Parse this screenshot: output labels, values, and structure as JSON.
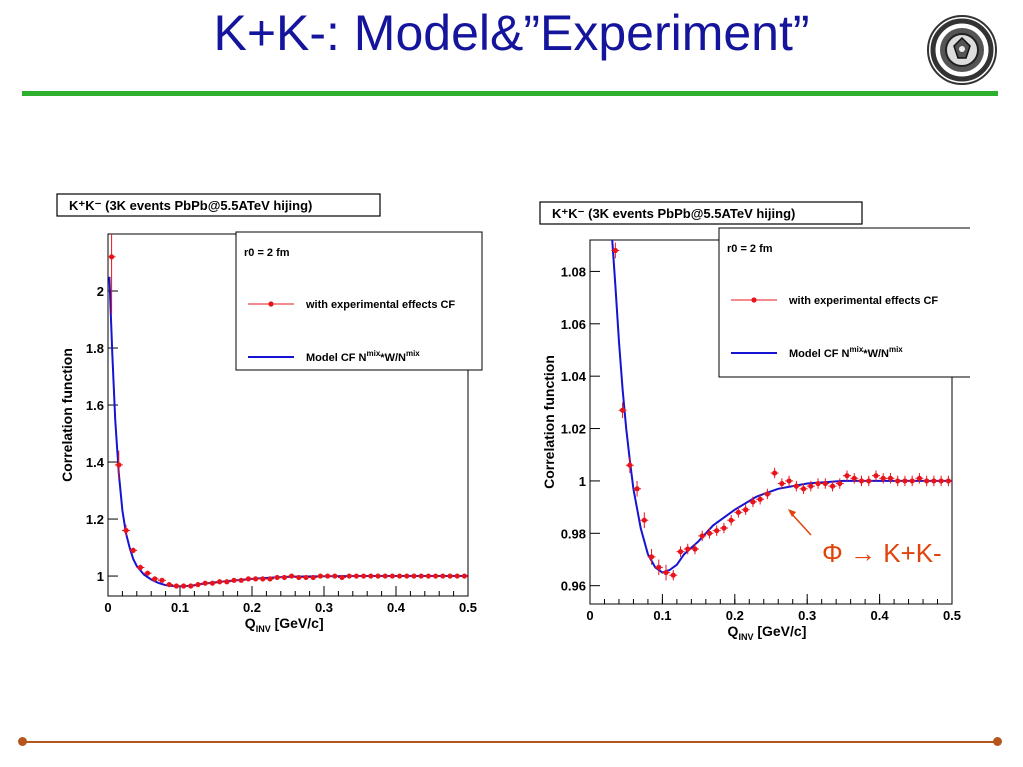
{
  "slide": {
    "title": "K+K-: Model&”Experiment”",
    "title_color": "#14149c",
    "rule_color": "#2db02d",
    "footer_color": "#b5561c",
    "logo_icon": "university-seal-icon",
    "annotation": "Φ → K+K-",
    "annotation_color": "#e0440c"
  },
  "chart_data": [
    {
      "type": "line",
      "title": "K⁺K⁻ (3K events PbPb@5.5ATeV hijing)",
      "xlabel": "Q_INV [GeV/c]",
      "ylabel": "Correlation function",
      "xlim": [
        0,
        0.5
      ],
      "ylim": [
        0.93,
        2.2
      ],
      "x_ticks": [
        "0",
        "0.1",
        "0.2",
        "0.3",
        "0.4",
        "0.5"
      ],
      "y_ticks": [
        "1",
        "1.2",
        "1.4",
        "1.6",
        "1.8",
        "2"
      ],
      "legend": {
        "header": "r0 = 2 fm",
        "placement": "top-right",
        "items": [
          "with experimental effects CF",
          "Model CF N^mix*W/N^mix"
        ]
      },
      "series": [
        {
          "name": "with experimental effects CF",
          "color": "#e8141c",
          "style": "markers-with-errorbars",
          "x": [
            0.005,
            0.015,
            0.025,
            0.035,
            0.045,
            0.055,
            0.065,
            0.075,
            0.085,
            0.095,
            0.105,
            0.115,
            0.125,
            0.135,
            0.145,
            0.155,
            0.165,
            0.175,
            0.185,
            0.195,
            0.205,
            0.215,
            0.225,
            0.235,
            0.245,
            0.255,
            0.265,
            0.275,
            0.285,
            0.295,
            0.305,
            0.315,
            0.325,
            0.335,
            0.345,
            0.355,
            0.365,
            0.375,
            0.385,
            0.395,
            0.405,
            0.415,
            0.425,
            0.435,
            0.445,
            0.455,
            0.465,
            0.475,
            0.485,
            0.495
          ],
          "y": [
            2.12,
            1.39,
            1.16,
            1.09,
            1.03,
            1.01,
            0.99,
            0.985,
            0.97,
            0.965,
            0.965,
            0.965,
            0.97,
            0.975,
            0.975,
            0.98,
            0.98,
            0.985,
            0.985,
            0.99,
            0.99,
            0.99,
            0.99,
            0.995,
            0.995,
            1.0,
            0.995,
            0.995,
            0.995,
            1.0,
            1.0,
            1.0,
            0.995,
            1.0,
            1.0,
            1.0,
            1.0,
            1.0,
            1.0,
            1.0,
            1.0,
            1.0,
            1.0,
            1.0,
            1.0,
            1.0,
            1.0,
            1.0,
            1.0,
            1.0
          ],
          "yerr": [
            0.2,
            0.05,
            0.02,
            0.01,
            0.01,
            0.008,
            0.006,
            0.006,
            0.005,
            0.005,
            0.005,
            0.004,
            0.004,
            0.004,
            0.004,
            0.004,
            0.004,
            0.004,
            0.004,
            0.004,
            0.004,
            0.004,
            0.004,
            0.004,
            0.004,
            0.004,
            0.004,
            0.004,
            0.004,
            0.004,
            0.004,
            0.004,
            0.004,
            0.004,
            0.004,
            0.004,
            0.004,
            0.004,
            0.004,
            0.004,
            0.004,
            0.004,
            0.004,
            0.004,
            0.004,
            0.004,
            0.004,
            0.004,
            0.004,
            0.004
          ]
        },
        {
          "name": "Model CF N^mix*W/N^mix",
          "color": "#1414d2",
          "style": "line",
          "x": [
            0.002,
            0.006,
            0.01,
            0.015,
            0.02,
            0.025,
            0.03,
            0.035,
            0.04,
            0.05,
            0.06,
            0.07,
            0.08,
            0.09,
            0.1,
            0.11,
            0.12,
            0.13,
            0.15,
            0.17,
            0.2,
            0.23,
            0.26,
            0.3,
            0.35,
            0.4,
            0.45,
            0.5
          ],
          "y": [
            2.05,
            1.78,
            1.55,
            1.36,
            1.23,
            1.15,
            1.1,
            1.06,
            1.035,
            1.005,
            0.988,
            0.976,
            0.968,
            0.965,
            0.964,
            0.965,
            0.968,
            0.972,
            0.978,
            0.983,
            0.99,
            0.995,
            0.998,
            0.999,
            1.0,
            1.0,
            1.0,
            1.0
          ]
        }
      ]
    },
    {
      "type": "line",
      "title": "K⁺K⁻ (3K events PbPb@5.5ATeV hijing)",
      "xlabel": "Q_INV [GeV/c]",
      "ylabel": "Correlation function",
      "xlim": [
        0,
        0.5
      ],
      "ylim": [
        0.953,
        1.092
      ],
      "x_ticks": [
        "0",
        "0.1",
        "0.2",
        "0.3",
        "0.4",
        "0.5"
      ],
      "y_ticks": [
        "0.96",
        "0.98",
        "1",
        "1.02",
        "1.04",
        "1.06",
        "1.08"
      ],
      "legend": {
        "header": "r0 = 2 fm",
        "placement": "top-right",
        "items": [
          "with experimental effects CF",
          "Model CF N^mix*W/N^mix"
        ]
      },
      "series": [
        {
          "name": "with experimental effects CF",
          "color": "#e8141c",
          "style": "markers-with-errorbars",
          "x": [
            0.035,
            0.045,
            0.055,
            0.065,
            0.075,
            0.085,
            0.095,
            0.105,
            0.115,
            0.125,
            0.135,
            0.145,
            0.155,
            0.165,
            0.175,
            0.185,
            0.195,
            0.205,
            0.215,
            0.225,
            0.235,
            0.245,
            0.255,
            0.265,
            0.275,
            0.285,
            0.295,
            0.305,
            0.315,
            0.325,
            0.335,
            0.345,
            0.355,
            0.365,
            0.375,
            0.385,
            0.395,
            0.405,
            0.415,
            0.425,
            0.435,
            0.445,
            0.455,
            0.465,
            0.475,
            0.485,
            0.495
          ],
          "y": [
            1.088,
            1.027,
            1.006,
            0.997,
            0.985,
            0.971,
            0.967,
            0.965,
            0.964,
            0.973,
            0.974,
            0.974,
            0.979,
            0.98,
            0.981,
            0.982,
            0.985,
            0.988,
            0.989,
            0.992,
            0.993,
            0.995,
            1.003,
            0.999,
            1.0,
            0.998,
            0.997,
            0.998,
            0.999,
            0.999,
            0.998,
            0.999,
            1.002,
            1.001,
            1.0,
            1.0,
            1.002,
            1.001,
            1.001,
            1.0,
            1.0,
            1.0,
            1.001,
            1.0,
            1.0,
            1.0,
            1.0
          ],
          "yerr": [
            0.003,
            0.003,
            0.003,
            0.003,
            0.003,
            0.003,
            0.003,
            0.003,
            0.002,
            0.002,
            0.002,
            0.002,
            0.002,
            0.002,
            0.002,
            0.002,
            0.002,
            0.002,
            0.002,
            0.002,
            0.002,
            0.002,
            0.002,
            0.002,
            0.002,
            0.002,
            0.002,
            0.002,
            0.002,
            0.002,
            0.002,
            0.002,
            0.002,
            0.002,
            0.002,
            0.002,
            0.002,
            0.002,
            0.002,
            0.002,
            0.002,
            0.002,
            0.002,
            0.002,
            0.002,
            0.002,
            0.002
          ]
        },
        {
          "name": "Model CF N^mix*W/N^mix",
          "color": "#1414d2",
          "style": "line",
          "x": [
            0.03,
            0.035,
            0.04,
            0.045,
            0.05,
            0.055,
            0.06,
            0.07,
            0.08,
            0.09,
            0.1,
            0.11,
            0.12,
            0.13,
            0.15,
            0.17,
            0.2,
            0.23,
            0.26,
            0.3,
            0.35,
            0.4,
            0.45,
            0.5
          ],
          "y": [
            1.095,
            1.075,
            1.053,
            1.035,
            1.02,
            1.008,
            0.997,
            0.982,
            0.972,
            0.967,
            0.965,
            0.966,
            0.968,
            0.972,
            0.977,
            0.983,
            0.989,
            0.994,
            0.997,
            0.999,
            1.0,
            1.0,
            1.0,
            1.0
          ]
        }
      ]
    }
  ]
}
